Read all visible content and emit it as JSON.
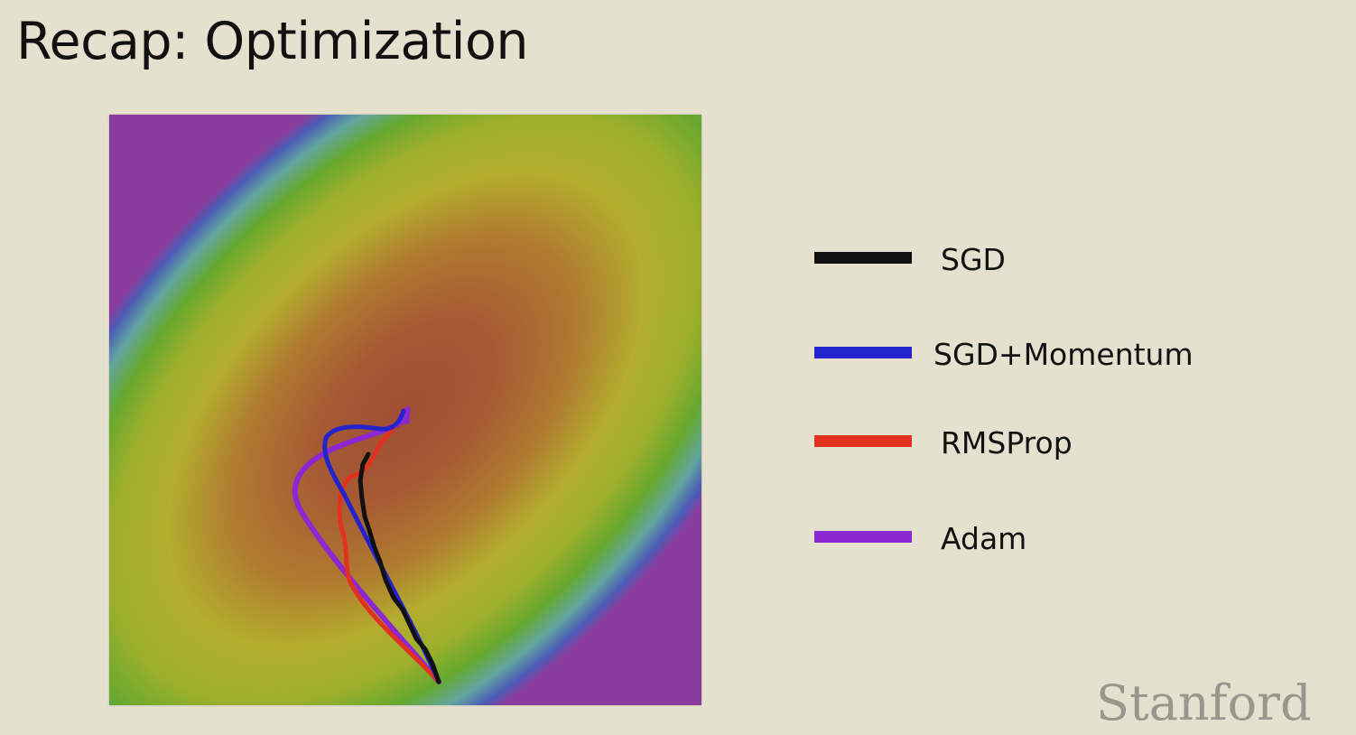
{
  "slide": {
    "title": "Recap: Optimization"
  },
  "plot": {
    "surface": "loss-contour-heatmap",
    "colors": {
      "center": "#a04e35",
      "ring_1": "#b6762e",
      "ring_2": "#b3ad2e",
      "ring_3": "#66a82e",
      "ring_4": "#62a6a0",
      "ring_5": "#4b5cb6",
      "outer": "#8a3c9c"
    }
  },
  "legend": {
    "items": [
      {
        "label": "SGD",
        "color": "#111111"
      },
      {
        "label": "SGD+Momentum",
        "color": "#2323cc"
      },
      {
        "label": "RMSProp",
        "color": "#e0321e"
      },
      {
        "label": "Adam",
        "color": "#8c28d2"
      }
    ]
  },
  "branding": {
    "logo_text": "Stanford",
    "logo_color": "#9a968d"
  }
}
